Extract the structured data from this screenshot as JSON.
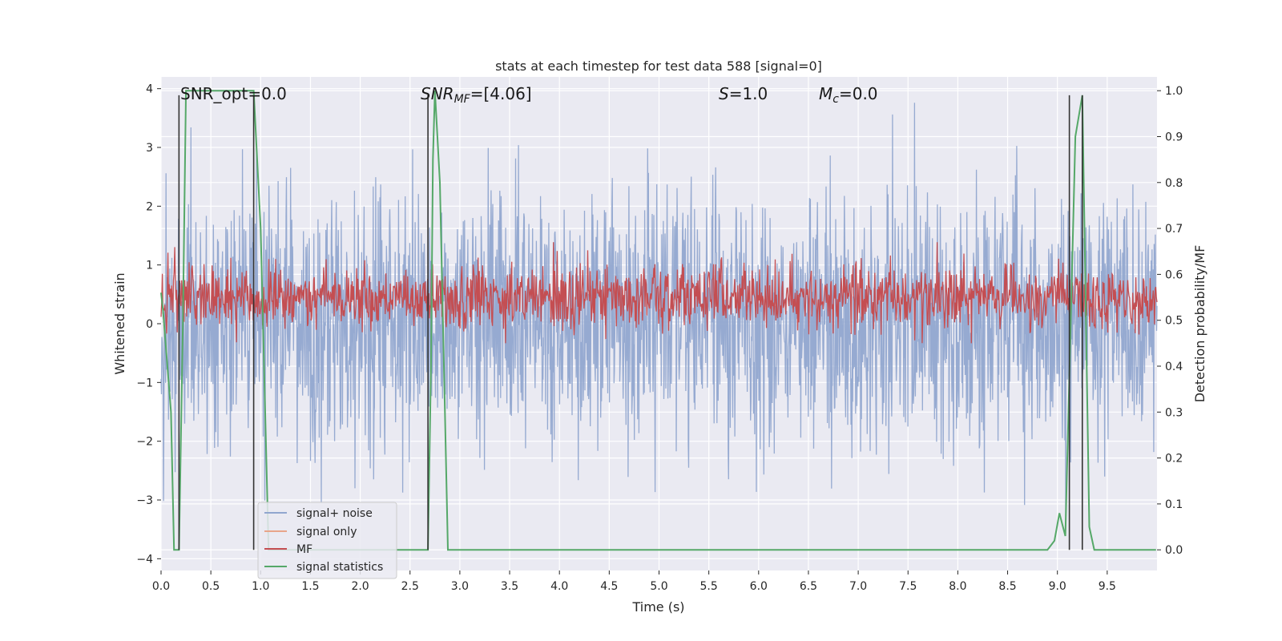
{
  "chart_data": {
    "type": "line",
    "title": "stats at each timestep for test data 588 [signal=0]",
    "xlabel": "Time (s)",
    "ylabel": "Whitened strain",
    "ylabel_right": "Detection probability/MF",
    "xlim": [
      0,
      10
    ],
    "ylim": [
      -4.2,
      4.2
    ],
    "ylim_right": [
      -0.045,
      1.03
    ],
    "grid": true,
    "legend_position": "lower-left",
    "x_ticks": [
      "0.0",
      "0.5",
      "1.0",
      "1.5",
      "2.0",
      "2.5",
      "3.0",
      "3.5",
      "4.0",
      "4.5",
      "5.0",
      "5.5",
      "6.0",
      "6.5",
      "7.0",
      "7.5",
      "8.0",
      "8.5",
      "9.0",
      "9.5"
    ],
    "y_ticks": [
      "4",
      "3",
      "2",
      "1",
      "0",
      "−1",
      "−2",
      "−3",
      "−4"
    ],
    "y_ticks_right": [
      "1.0",
      "0.9",
      "0.8",
      "0.7",
      "0.6",
      "0.5",
      "0.4",
      "0.3",
      "0.2",
      "0.1",
      "0.0"
    ],
    "annotations": {
      "snr_opt": "SNR_opt=0.0",
      "snr_mf_label": "SNR",
      "snr_mf_sub": "MF",
      "snr_mf_value": "=[4.06]",
      "s_label": "S",
      "s_value": "=1.0",
      "mc_label": "M",
      "mc_sub": "c",
      "mc_value": "=0.0"
    },
    "series": [
      {
        "name": "signal+ noise",
        "color": "#91a6cf",
        "description_values": "noise, approx. range -3.5 to 3.9 whitened strain"
      },
      {
        "name": "signal only",
        "color": "#e8a58a",
        "values": []
      },
      {
        "name": "MF",
        "color": "#c44e52",
        "description_values": "noise around 0.55 detection probability/MF, range ~0.45 to 0.67"
      },
      {
        "name": "signal statistics",
        "color": "#55a868",
        "axis": "right",
        "x": [
          0.0,
          0.02,
          0.1,
          0.13,
          0.18,
          0.22,
          0.25,
          0.5,
          0.75,
          0.93,
          1.0,
          1.08,
          2.0,
          2.68,
          2.71,
          2.73,
          2.75,
          2.8,
          2.85,
          2.88,
          3.5,
          5.0,
          7.0,
          8.9,
          8.97,
          9.02,
          9.08,
          9.14,
          9.18,
          9.25,
          9.32,
          9.37,
          9.5,
          9.99
        ],
        "values": [
          0.56,
          0.52,
          0.3,
          0.0,
          0.0,
          0.5,
          1.0,
          1.0,
          1.0,
          1.0,
          0.7,
          0.0,
          0.0,
          0.0,
          0.4,
          0.85,
          1.0,
          0.8,
          0.3,
          0.0,
          0.0,
          0.0,
          0.0,
          0.0,
          0.02,
          0.08,
          0.03,
          0.55,
          0.9,
          0.99,
          0.05,
          0.0,
          0.0,
          0.0
        ]
      }
    ],
    "vertical_markers_x": [
      0.18,
      0.93,
      2.68,
      9.12,
      9.25
    ],
    "vertical_markers_color": "#333333"
  },
  "legend": [
    {
      "label": "signal+ noise",
      "color": "#91a6cf"
    },
    {
      "label": "signal only",
      "color": "#e8a58a"
    },
    {
      "label": "MF",
      "color": "#c44e52"
    },
    {
      "label": "signal statistics",
      "color": "#55a868"
    }
  ]
}
